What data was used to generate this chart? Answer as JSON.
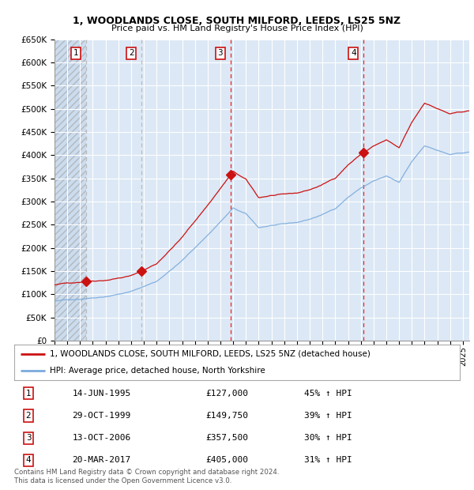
{
  "title_line1": "1, WOODLANDS CLOSE, SOUTH MILFORD, LEEDS, LS25 5NZ",
  "title_line2": "Price paid vs. HM Land Registry's House Price Index (HPI)",
  "ylim": [
    0,
    650000
  ],
  "yticks": [
    0,
    50000,
    100000,
    150000,
    200000,
    250000,
    300000,
    350000,
    400000,
    450000,
    500000,
    550000,
    600000,
    650000
  ],
  "ytick_labels": [
    "£0",
    "£50K",
    "£100K",
    "£150K",
    "£200K",
    "£250K",
    "£300K",
    "£350K",
    "£400K",
    "£450K",
    "£500K",
    "£550K",
    "£600K",
    "£650K"
  ],
  "xlim_start": 1993.0,
  "xlim_end": 2025.5,
  "plot_bg_color": "#dce8f5",
  "transactions": [
    {
      "num": 1,
      "date": "14-JUN-1995",
      "x": 1995.45,
      "price": 127000,
      "pct": "45%",
      "dir": "↑"
    },
    {
      "num": 2,
      "date": "29-OCT-1999",
      "x": 1999.83,
      "price": 149750,
      "pct": "39%",
      "dir": "↑"
    },
    {
      "num": 3,
      "date": "13-OCT-2006",
      "x": 2006.79,
      "price": 357500,
      "pct": "30%",
      "dir": "↑"
    },
    {
      "num": 4,
      "date": "20-MAR-2017",
      "x": 2017.22,
      "price": 405000,
      "pct": "31%",
      "dir": "↑"
    }
  ],
  "legend_entry1": "1, WOODLANDS CLOSE, SOUTH MILFORD, LEEDS, LS25 5NZ (detached house)",
  "legend_entry2": "HPI: Average price, detached house, North Yorkshire",
  "footer": "Contains HM Land Registry data © Crown copyright and database right 2024.\nThis data is licensed under the Open Government Licence v3.0.",
  "red_line_color": "#cc1111",
  "blue_line_color": "#7aaadd",
  "marker_color": "#cc1111",
  "dashed_line_color_recent": "#ee2222",
  "dashed_line_color_old": "#bbbbbb"
}
